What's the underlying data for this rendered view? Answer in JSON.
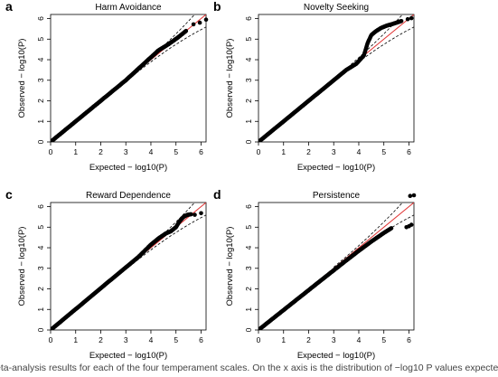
{
  "chart_data": [
    {
      "type": "scatter",
      "panel_letter": "a",
      "title": "Harm Avoidance",
      "xlabel": "Expected − log10(P)",
      "ylabel": "Observed − log10(P)",
      "xlim": [
        0,
        6.2
      ],
      "ylim": [
        0,
        6.2
      ],
      "xticks": [
        "0",
        "1",
        "2",
        "3",
        "4",
        "5",
        "6"
      ],
      "yticks": [
        "0",
        "1",
        "2",
        "3",
        "4",
        "5",
        "6"
      ],
      "curve": [
        [
          0,
          0
        ],
        [
          3,
          3
        ],
        [
          4.3,
          4.45
        ],
        [
          4.7,
          4.75
        ],
        [
          5.1,
          5.1
        ],
        [
          5.4,
          5.4
        ]
      ],
      "outliers": [
        [
          5.7,
          5.72
        ],
        [
          5.95,
          5.8
        ],
        [
          6.2,
          5.95
        ]
      ],
      "grid": false
    },
    {
      "type": "scatter",
      "panel_letter": "b",
      "title": "Novelty Seeking",
      "xlabel": "Expected − log10(P)",
      "ylabel": "Observed − log10(P)",
      "xlim": [
        0,
        6.2
      ],
      "ylim": [
        0,
        6.2
      ],
      "xticks": [
        "0",
        "1",
        "2",
        "3",
        "4",
        "5",
        "6"
      ],
      "yticks": [
        "0",
        "1",
        "2",
        "3",
        "4",
        "5",
        "6"
      ],
      "curve": [
        [
          0,
          0
        ],
        [
          3.5,
          3.5
        ],
        [
          3.9,
          3.8
        ],
        [
          4.2,
          4.2
        ],
        [
          4.35,
          4.8
        ],
        [
          4.5,
          5.2
        ],
        [
          4.7,
          5.4
        ],
        [
          4.9,
          5.55
        ],
        [
          5.1,
          5.65
        ],
        [
          5.3,
          5.72
        ],
        [
          5.5,
          5.8
        ],
        [
          5.7,
          5.88
        ]
      ],
      "outliers": [
        [
          5.95,
          5.97
        ],
        [
          6.1,
          6.02
        ]
      ],
      "grid": false
    },
    {
      "type": "scatter",
      "panel_letter": "c",
      "title": "Reward Dependence",
      "xlabel": "Expected − log10(P)",
      "ylabel": "Observed − log10(P)",
      "xlim": [
        0,
        6.2
      ],
      "ylim": [
        0,
        6.2
      ],
      "xticks": [
        "0",
        "1",
        "2",
        "3",
        "4",
        "5",
        "6"
      ],
      "yticks": [
        "0",
        "1",
        "2",
        "3",
        "4",
        "5",
        "6"
      ],
      "curve": [
        [
          0,
          0
        ],
        [
          3.5,
          3.55
        ],
        [
          4.0,
          4.15
        ],
        [
          4.3,
          4.45
        ],
        [
          4.6,
          4.7
        ],
        [
          4.8,
          4.8
        ],
        [
          5.0,
          5.0
        ],
        [
          5.15,
          5.3
        ],
        [
          5.3,
          5.5
        ],
        [
          5.45,
          5.6
        ],
        [
          5.6,
          5.63
        ]
      ],
      "outliers": [
        [
          5.75,
          5.6
        ],
        [
          6.0,
          5.68
        ]
      ],
      "grid": false
    },
    {
      "type": "scatter",
      "panel_letter": "d",
      "title": "Persistence",
      "xlabel": "Expected − log10(P)",
      "ylabel": "Observed − log10(P)",
      "xlim": [
        0,
        6.2
      ],
      "ylim": [
        0,
        6.2
      ],
      "xticks": [
        "0",
        "1",
        "2",
        "3",
        "4",
        "5",
        "6"
      ],
      "yticks": [
        "0",
        "1",
        "2",
        "3",
        "4",
        "5",
        "6"
      ],
      "curve": [
        [
          0,
          0
        ],
        [
          2.5,
          2.42
        ],
        [
          3.5,
          3.38
        ],
        [
          4.0,
          3.85
        ],
        [
          4.5,
          4.3
        ],
        [
          5.0,
          4.72
        ],
        [
          5.3,
          4.95
        ]
      ],
      "outliers": [
        [
          5.9,
          5.0
        ],
        [
          6.0,
          5.05
        ],
        [
          6.05,
          6.52
        ],
        [
          6.1,
          5.12
        ],
        [
          6.2,
          6.55
        ]
      ],
      "grid": false
    }
  ],
  "caption": "eta-analysis results for each of the four temperament scales. On the x axis is the distribution of −log10 P values expecte",
  "colors": {
    "points": "#000000",
    "identity_line": "#e03030",
    "ci_lines": "#000000"
  }
}
